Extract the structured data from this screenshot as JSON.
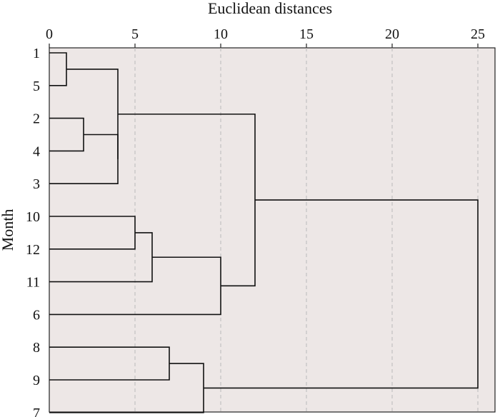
{
  "chart_data": {
    "type": "dendrogram",
    "xlabel": "Euclidean distances",
    "ylabel": "Month",
    "xlim": [
      0,
      26
    ],
    "xticks": [
      0,
      5,
      10,
      15,
      20,
      25
    ],
    "grid": true,
    "background_color": "#ede7e6",
    "line_color": "#111111",
    "leaves": [
      "1",
      "5",
      "2",
      "4",
      "3",
      "10",
      "12",
      "11",
      "6",
      "8",
      "9",
      "7"
    ],
    "merges": [
      {
        "left": "1",
        "right": "5",
        "distance": 1
      },
      {
        "left": "2",
        "right": "4",
        "distance": 2
      },
      {
        "left": "1-5",
        "right": "2-4-3",
        "distance": 4
      },
      {
        "left": "2-4",
        "right": "3",
        "distance": 4
      },
      {
        "left": "10",
        "right": "12",
        "distance": 5
      },
      {
        "left": "10-12",
        "right": "11",
        "distance": 6
      },
      {
        "left": "10-12-11",
        "right": "6",
        "distance": 10
      },
      {
        "left": "1-5-2-4-3",
        "right": "10-12-11-6",
        "distance": 12
      },
      {
        "left": "8",
        "right": "9",
        "distance": 7
      },
      {
        "left": "8-9",
        "right": "7",
        "distance": 9
      },
      {
        "left": "1-5-2-4-3-10-12-11-6",
        "right": "8-9-7",
        "distance": 25
      }
    ]
  }
}
